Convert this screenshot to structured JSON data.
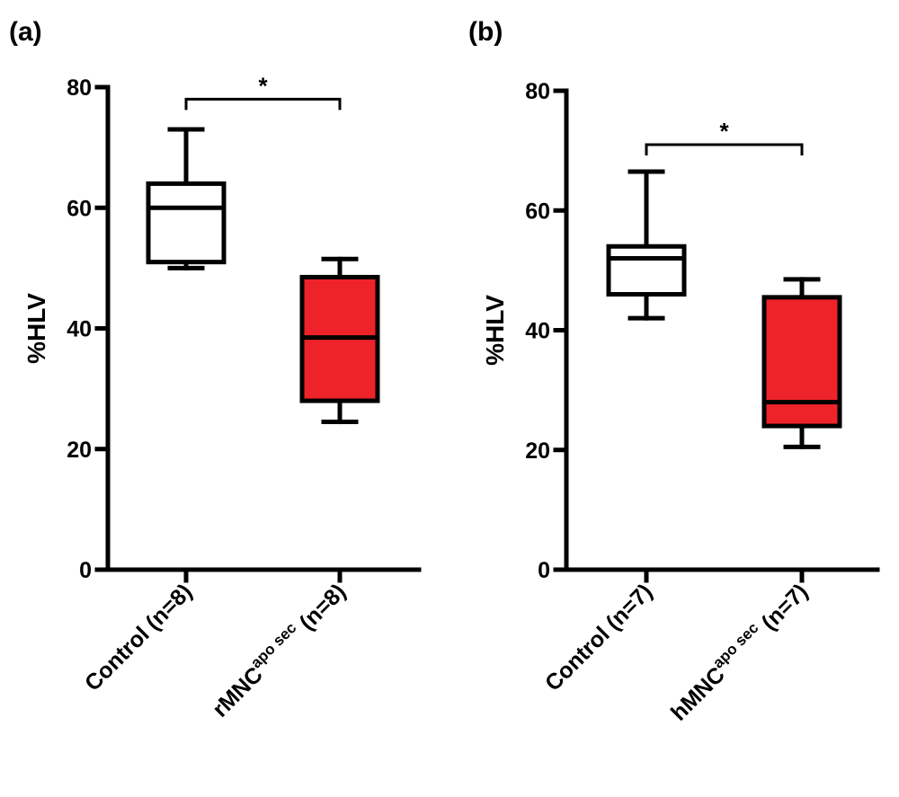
{
  "chart_data": [
    {
      "panel": "(a)",
      "type": "box",
      "ylabel": "%HLV",
      "ylim": [
        0,
        80
      ],
      "yticks": [
        "0",
        "20",
        "40",
        "60",
        "80"
      ],
      "categories": [
        {
          "base": "Control (n=8)",
          "sup": "",
          "tail": ""
        },
        {
          "base": "rMNC",
          "sup": "apo sec",
          "tail": " (n=8)"
        }
      ],
      "boxes": [
        {
          "min": 50,
          "q1": 51,
          "median": 60,
          "q3": 64,
          "max": 73,
          "fill": "#ffffff"
        },
        {
          "min": 24.5,
          "q1": 28,
          "median": 38.5,
          "q3": 48.5,
          "max": 51.5,
          "fill": "#ee2229"
        }
      ],
      "significance": {
        "label": "*",
        "level": 78
      }
    },
    {
      "panel": "(b)",
      "type": "box",
      "ylabel": "%HLV",
      "ylim": [
        0,
        80
      ],
      "yticks": [
        "0",
        "20",
        "40",
        "60",
        "80"
      ],
      "categories": [
        {
          "base": "Control (n=7)",
          "sup": "",
          "tail": ""
        },
        {
          "base": "hMNC",
          "sup": "apo sec",
          "tail": " (n=7)"
        }
      ],
      "boxes": [
        {
          "min": 42,
          "q1": 46,
          "median": 52,
          "q3": 54,
          "max": 66.5,
          "fill": "#ffffff"
        },
        {
          "min": 20.5,
          "q1": 24,
          "median": 28,
          "q3": 45.5,
          "max": 48.5,
          "fill": "#ee2229"
        }
      ],
      "significance": {
        "label": "*",
        "level": 71
      }
    }
  ]
}
